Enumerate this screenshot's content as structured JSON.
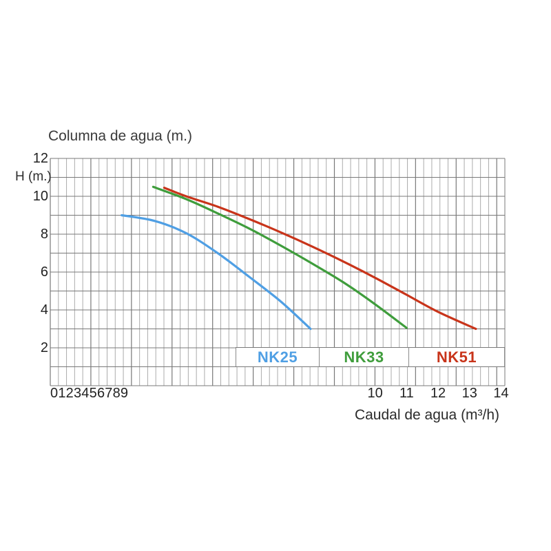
{
  "title": "Columna de agua (m.)",
  "axes": {
    "y_label": "H (m.)",
    "y_ticks": [
      {
        "label": "12",
        "value": 12
      },
      {
        "label": "10",
        "value": 10
      },
      {
        "label": "8",
        "value": 8
      },
      {
        "label": "6",
        "value": 6
      },
      {
        "label": "4",
        "value": 4
      },
      {
        "label": "2",
        "value": 2
      }
    ],
    "x_compressed_labels": "0123456789",
    "x_ticks": [
      {
        "label": "10",
        "value": 10
      },
      {
        "label": "11",
        "value": 11
      },
      {
        "label": "12",
        "value": 12
      },
      {
        "label": "13",
        "value": 13
      },
      {
        "label": "14",
        "value": 14
      }
    ],
    "x_title": "Caudal de agua (m³/h)"
  },
  "legend": {
    "items": [
      {
        "label": "NK25",
        "color": "#4f9fe4"
      },
      {
        "label": "NK33",
        "color": "#3f9d3c"
      },
      {
        "label": "NK51",
        "color": "#c8341a"
      }
    ]
  },
  "colors": {
    "grid_minor": "#ababab",
    "grid_major": "#787878",
    "text_dark": "#222222",
    "title_gray": "#3a3a3a"
  },
  "chart_data": {
    "type": "line",
    "title": "Columna de agua (m.)",
    "xlabel": "Caudal de agua (m³/h)",
    "ylabel": "H (m.)",
    "xlim": [
      0,
      14.4
    ],
    "ylim": [
      0,
      12
    ],
    "grid": true,
    "legend_position": "inside-bottom",
    "series": [
      {
        "name": "NK25",
        "color": "#4f9fe4",
        "points": [
          [
            1.95,
            9.0
          ],
          [
            3,
            8.7
          ],
          [
            4,
            8.05
          ],
          [
            5,
            7.0
          ],
          [
            6,
            5.75
          ],
          [
            7,
            4.45
          ],
          [
            7.95,
            3.0
          ]
        ]
      },
      {
        "name": "NK33",
        "color": "#3f9d3c",
        "points": [
          [
            2.95,
            10.5
          ],
          [
            4,
            9.85
          ],
          [
            5,
            9.1
          ],
          [
            6,
            8.3
          ],
          [
            7,
            7.4
          ],
          [
            8,
            6.45
          ],
          [
            9,
            5.45
          ],
          [
            10,
            4.3
          ],
          [
            11,
            3.05
          ]
        ]
      },
      {
        "name": "NK51",
        "color": "#c8341a",
        "points": [
          [
            3.3,
            10.45
          ],
          [
            4,
            10.0
          ],
          [
            5,
            9.45
          ],
          [
            6,
            8.8
          ],
          [
            7,
            8.1
          ],
          [
            8,
            7.35
          ],
          [
            9,
            6.55
          ],
          [
            10,
            5.7
          ],
          [
            11,
            4.8
          ],
          [
            12,
            3.9
          ],
          [
            13.2,
            3.0
          ]
        ]
      }
    ]
  }
}
